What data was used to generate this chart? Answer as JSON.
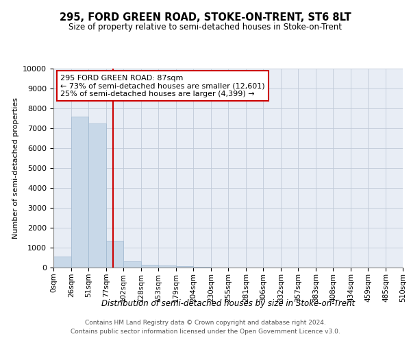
{
  "title": "295, FORD GREEN ROAD, STOKE-ON-TRENT, ST6 8LT",
  "subtitle": "Size of property relative to semi-detached houses in Stoke-on-Trent",
  "xlabel": "Distribution of semi-detached houses by size in Stoke-on-Trent",
  "ylabel": "Number of semi-detached properties",
  "footer1": "Contains HM Land Registry data © Crown copyright and database right 2024.",
  "footer2": "Contains public sector information licensed under the Open Government Licence v3.0.",
  "bin_edges": [
    0,
    26,
    51,
    77,
    102,
    128,
    153,
    179,
    204,
    230,
    255,
    281,
    306,
    332,
    357,
    383,
    408,
    434,
    459,
    485,
    510
  ],
  "bar_values": [
    550,
    7600,
    7250,
    1350,
    300,
    150,
    100,
    70,
    40,
    0,
    0,
    0,
    0,
    0,
    0,
    0,
    0,
    0,
    0,
    0
  ],
  "bar_color": "#c8d8e8",
  "bar_edge_color": "#a0b8d0",
  "property_size": 87,
  "vline_color": "#cc0000",
  "annotation_box_color": "#cc0000",
  "annotation_title": "295 FORD GREEN ROAD: 87sqm",
  "annotation_line1": "← 73% of semi-detached houses are smaller (12,601)",
  "annotation_line2": "25% of semi-detached houses are larger (4,399) →",
  "ylim": [
    0,
    10000
  ],
  "yticks": [
    0,
    1000,
    2000,
    3000,
    4000,
    5000,
    6000,
    7000,
    8000,
    9000,
    10000
  ],
  "grid_color": "#c0cad8",
  "background_color": "#e8edf5",
  "title_fontsize": 10.5,
  "subtitle_fontsize": 8.5,
  "tick_label_fontsize": 7.5,
  "ylabel_fontsize": 8,
  "xlabel_fontsize": 8.5,
  "annotation_fontsize": 8,
  "footer_fontsize": 6.5
}
